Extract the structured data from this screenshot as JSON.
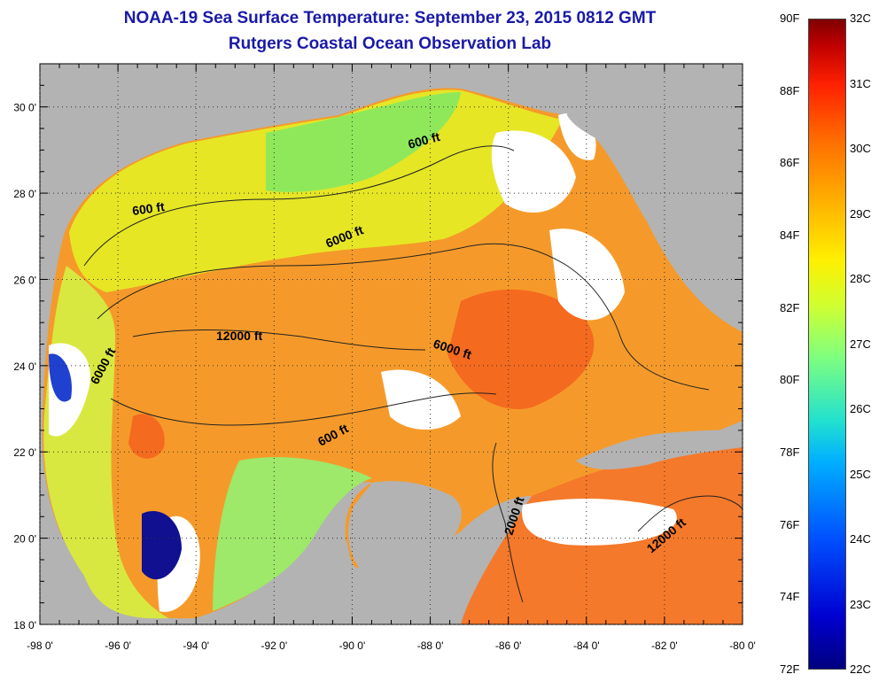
{
  "title": "NOAA-19 Sea Surface Temperature:  September 23, 2015 0812 GMT",
  "subtitle": "Rutgers Coastal Ocean Observation Lab",
  "map": {
    "lon_labels": [
      "-98 0'",
      "-96 0'",
      "-94 0'",
      "-92 0'",
      "-90 0'",
      "-88 0'",
      "-86 0'",
      "-84 0'",
      "-82 0'",
      "-80 0'"
    ],
    "lat_labels": [
      "30 0'",
      "28 0'",
      "26 0'",
      "24 0'",
      "22 0'",
      "20 0'",
      "18 0'"
    ],
    "lon_range": [
      -98,
      -80
    ],
    "lat_range": [
      18,
      31
    ],
    "contour_labels": [
      "600 ft",
      "600 ft",
      "6000 ft",
      "12000 ft",
      "6000 ft",
      "6000 ft",
      "600 ft",
      "2000 ft",
      "12000 ft"
    ],
    "land_color": "#b3b3b3",
    "cloud_color": "#ffffff"
  },
  "colorbar": {
    "f_labels": [
      "90F",
      "88F",
      "86F",
      "84F",
      "82F",
      "80F",
      "78F",
      "76F",
      "74F",
      "72F"
    ],
    "c_labels": [
      "32C",
      "31C",
      "30C",
      "29C",
      "28C",
      "27C",
      "26C",
      "25C",
      "24C",
      "23C",
      "22C"
    ],
    "range_f": [
      72,
      90
    ],
    "range_c": [
      22,
      32
    ]
  }
}
